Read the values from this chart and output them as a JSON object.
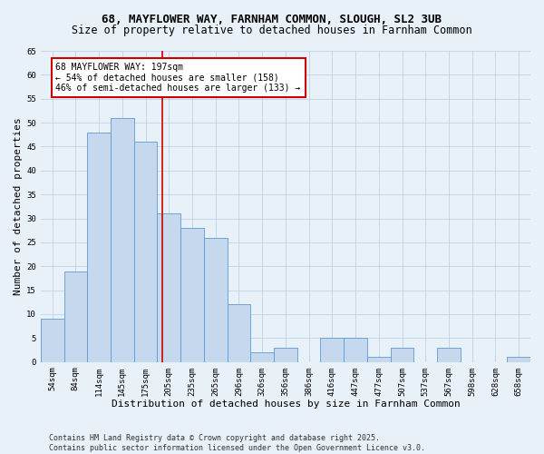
{
  "title1": "68, MAYFLOWER WAY, FARNHAM COMMON, SLOUGH, SL2 3UB",
  "title2": "Size of property relative to detached houses in Farnham Common",
  "xlabel": "Distribution of detached houses by size in Farnham Common",
  "ylabel": "Number of detached properties",
  "categories": [
    "54sqm",
    "84sqm",
    "114sqm",
    "145sqm",
    "175sqm",
    "205sqm",
    "235sqm",
    "265sqm",
    "296sqm",
    "326sqm",
    "356sqm",
    "386sqm",
    "416sqm",
    "447sqm",
    "477sqm",
    "507sqm",
    "537sqm",
    "567sqm",
    "598sqm",
    "628sqm",
    "658sqm"
  ],
  "values": [
    9,
    19,
    48,
    51,
    46,
    31,
    28,
    26,
    12,
    2,
    3,
    0,
    5,
    5,
    1,
    3,
    0,
    3,
    0,
    0,
    1
  ],
  "bar_color": "#c5d8ed",
  "bar_edge_color": "#5b9bd5",
  "marker_value": 197,
  "annotation_text": "68 MAYFLOWER WAY: 197sqm\n← 54% of detached houses are smaller (158)\n46% of semi-detached houses are larger (133) →",
  "annotation_box_color": "#ffffff",
  "annotation_box_edge_color": "#cc0000",
  "marker_line_color": "#cc0000",
  "ylim": [
    0,
    65
  ],
  "yticks": [
    0,
    5,
    10,
    15,
    20,
    25,
    30,
    35,
    40,
    45,
    50,
    55,
    60,
    65
  ],
  "background_color": "#e8f0f8",
  "grid_color": "#b8cde0",
  "footer_text": "Contains HM Land Registry data © Crown copyright and database right 2025.\nContains public sector information licensed under the Open Government Licence v3.0.",
  "title_fontsize": 9,
  "subtitle_fontsize": 8.5,
  "axis_label_fontsize": 8,
  "tick_fontsize": 6.5,
  "annotation_fontsize": 7,
  "footer_fontsize": 6
}
